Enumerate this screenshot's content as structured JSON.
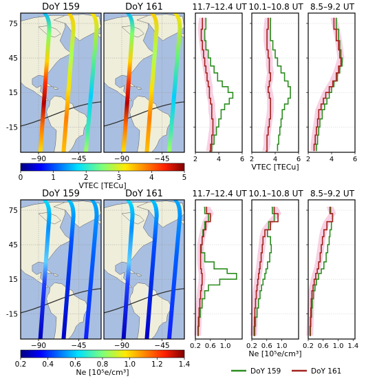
{
  "figure": {
    "map_titles": [
      "DoY 159",
      "DoY 161"
    ],
    "profile_titles": [
      "11.7–12.4 UT",
      "10.1–10.8 UT",
      "8.5–9.2 UT"
    ]
  },
  "chart_data": [
    {
      "type": "map",
      "panel": "top-left",
      "title": "DoY 159",
      "lat_ticks": [
        75,
        45,
        15,
        -15
      ],
      "lon_ticks": [
        -90,
        -45
      ],
      "xlim": [
        -110,
        -20
      ],
      "ylim": [
        -37,
        84
      ],
      "tracks": [
        {
          "lon_start": -88,
          "lon_end": -78
        },
        {
          "lon_start": -62,
          "lon_end": -51
        },
        {
          "lon_start": -37,
          "lon_end": -25
        }
      ]
    },
    {
      "type": "map",
      "panel": "top-right",
      "title": "DoY 161",
      "lat_ticks": [
        75,
        45,
        15,
        -15
      ],
      "lon_ticks": [
        -90,
        -45
      ],
      "xlim": [
        -110,
        -20
      ],
      "ylim": [
        -37,
        84
      ],
      "tracks": [
        {
          "lon_start": -88,
          "lon_end": -78
        },
        {
          "lon_start": -62,
          "lon_end": -51
        },
        {
          "lon_start": -37,
          "lon_end": -25
        }
      ]
    },
    {
      "type": "colorbar",
      "label": "VTEC [TECu]",
      "ticks": [
        "0",
        "1",
        "2",
        "3",
        "4",
        "5"
      ],
      "range": [
        0,
        5
      ],
      "colormap": "jet"
    },
    {
      "type": "line",
      "panel": "top-profile-1",
      "title": "11.7–12.4 UT",
      "xlim": [
        2,
        6
      ],
      "ylim": [
        -37,
        84
      ],
      "xticks": [
        "2",
        "4",
        "6"
      ],
      "series": [
        {
          "name": "DoY 159",
          "color": "#2a8c1e",
          "x": [
            2.9,
            2.8,
            2.9,
            3.1,
            3.3,
            3.6,
            3.9,
            4.3,
            4.8,
            5.2,
            4.9,
            4.5,
            4.2,
            4.0,
            3.8,
            3.6,
            3.4,
            3.2
          ],
          "y": [
            80,
            70,
            60,
            52,
            45,
            38,
            32,
            25,
            20,
            15,
            10,
            5,
            0,
            -8,
            -15,
            -22,
            -30,
            -36
          ]
        },
        {
          "name": "DoY 161",
          "color": "#a3201b",
          "x": [
            2.6,
            2.5,
            2.6,
            2.7,
            2.8,
            2.9,
            3.0,
            3.1,
            3.2,
            3.2,
            3.3,
            3.4,
            3.4,
            3.5,
            3.5,
            3.4,
            3.3,
            3.2
          ],
          "y": [
            80,
            70,
            60,
            52,
            45,
            38,
            32,
            25,
            20,
            15,
            10,
            5,
            0,
            -8,
            -15,
            -22,
            -30,
            -36
          ]
        }
      ]
    },
    {
      "type": "line",
      "panel": "top-profile-2",
      "title": "10.1–10.8 UT",
      "xlim": [
        2,
        6
      ],
      "ylim": [
        -37,
        84
      ],
      "xticks": [
        "2",
        "4",
        "6"
      ],
      "xlabel": "VTEC [TECu]",
      "series": [
        {
          "name": "DoY 159",
          "color": "#2a8c1e",
          "x": [
            3.6,
            3.6,
            3.8,
            4.0,
            4.2,
            4.5,
            4.8,
            5.1,
            5.3,
            5.3,
            5.1,
            4.8,
            4.6,
            4.5,
            4.4,
            4.3,
            4.2,
            4.2
          ],
          "y": [
            80,
            70,
            60,
            52,
            45,
            38,
            32,
            25,
            20,
            15,
            10,
            5,
            0,
            -8,
            -15,
            -22,
            -30,
            -36
          ]
        },
        {
          "name": "DoY 161",
          "color": "#a3201b",
          "x": [
            3.4,
            3.3,
            3.3,
            3.4,
            3.5,
            3.5,
            3.6,
            3.5,
            3.4,
            3.5,
            3.6,
            3.6,
            3.6,
            3.5,
            3.4,
            3.3,
            3.3,
            3.2
          ],
          "y": [
            80,
            70,
            60,
            52,
            45,
            38,
            32,
            25,
            20,
            15,
            10,
            5,
            0,
            -8,
            -15,
            -22,
            -30,
            -36
          ]
        }
      ]
    },
    {
      "type": "line",
      "panel": "top-profile-3",
      "title": "8.5–9.2 UT",
      "xlim": [
        2,
        6
      ],
      "ylim": [
        -37,
        84
      ],
      "xticks": [
        "2",
        "4",
        "6"
      ],
      "series": [
        {
          "name": "DoY 159",
          "color": "#2a8c1e",
          "x": [
            4.4,
            4.6,
            4.7,
            4.8,
            4.9,
            4.7,
            4.5,
            4.2,
            4.0,
            3.8,
            3.6,
            3.4,
            3.2,
            3.0,
            2.9,
            2.8,
            2.7,
            2.7
          ],
          "y": [
            80,
            70,
            60,
            52,
            45,
            38,
            32,
            25,
            20,
            15,
            10,
            5,
            0,
            -8,
            -15,
            -22,
            -30,
            -36
          ]
        },
        {
          "name": "DoY 161",
          "color": "#a3201b",
          "x": [
            4.2,
            4.4,
            4.6,
            4.7,
            4.8,
            4.6,
            4.4,
            4.1,
            3.8,
            3.5,
            3.3,
            3.1,
            2.9,
            2.8,
            2.7,
            2.6,
            2.5,
            2.5
          ],
          "y": [
            80,
            70,
            60,
            52,
            45,
            38,
            32,
            25,
            20,
            15,
            10,
            5,
            0,
            -8,
            -15,
            -22,
            -30,
            -36
          ]
        }
      ]
    },
    {
      "type": "map",
      "panel": "bottom-left",
      "title": "DoY 159",
      "lat_ticks": [
        75,
        45,
        15,
        -15
      ],
      "lon_ticks": [
        -90,
        -45
      ],
      "xlim": [
        -110,
        -20
      ],
      "ylim": [
        -37,
        84
      ],
      "tracks": [
        {
          "lon_start": -88,
          "lon_end": -78
        },
        {
          "lon_start": -62,
          "lon_end": -51
        },
        {
          "lon_start": -37,
          "lon_end": -25
        }
      ]
    },
    {
      "type": "map",
      "panel": "bottom-right",
      "title": "DoY 161",
      "lat_ticks": [
        75,
        45,
        15,
        -15
      ],
      "lon_ticks": [
        -90,
        -45
      ],
      "xlim": [
        -110,
        -20
      ],
      "ylim": [
        -37,
        84
      ],
      "tracks": [
        {
          "lon_start": -88,
          "lon_end": -78
        },
        {
          "lon_start": -62,
          "lon_end": -51
        },
        {
          "lon_start": -37,
          "lon_end": -25
        }
      ]
    },
    {
      "type": "colorbar",
      "label": "Ne [10⁵e/cm³]",
      "ticks": [
        "0.2",
        "0.4",
        "0.6",
        "0.8",
        "1.0",
        "1.2",
        "1.4"
      ],
      "range": [
        0.2,
        1.4
      ],
      "colormap": "jet"
    },
    {
      "type": "line",
      "panel": "bottom-profile-1",
      "title": "11.7–12.4 UT",
      "xlim": [
        0.2,
        1.45
      ],
      "ylim": [
        -37,
        84
      ],
      "xticks": [
        "0.2",
        "0.6",
        "1.0"
      ],
      "series": [
        {
          "name": "DoY 159",
          "color": "#2a8c1e",
          "x": [
            0.45,
            0.55,
            0.45,
            0.4,
            0.38,
            0.36,
            0.45,
            0.7,
            1.05,
            1.3,
            0.85,
            0.55,
            0.45,
            0.38,
            0.33,
            0.3,
            0.28,
            0.26
          ],
          "y": [
            78,
            72,
            65,
            58,
            52,
            45,
            38,
            30,
            24,
            20,
            15,
            10,
            5,
            -2,
            -10,
            -18,
            -26,
            -34
          ]
        },
        {
          "name": "DoY 161",
          "color": "#a3201b",
          "x": [
            0.5,
            0.6,
            0.48,
            0.42,
            0.38,
            0.34,
            0.34,
            0.34,
            0.36,
            0.38,
            0.38,
            0.36,
            0.34,
            0.32,
            0.3,
            0.28,
            0.27,
            0.26
          ],
          "y": [
            78,
            72,
            65,
            58,
            52,
            45,
            38,
            30,
            24,
            20,
            15,
            10,
            5,
            -2,
            -10,
            -18,
            -26,
            -34
          ]
        }
      ]
    },
    {
      "type": "line",
      "panel": "bottom-profile-2",
      "title": "10.1–10.8 UT",
      "xlim": [
        0.2,
        1.45
      ],
      "ylim": [
        -37,
        84
      ],
      "xticks": [
        "0.2",
        "0.6",
        "1.0"
      ],
      "xlabel": "Ne [10⁵e/cm³]",
      "series": [
        {
          "name": "DoY 159",
          "color": "#2a8c1e",
          "x": [
            0.75,
            0.8,
            0.65,
            0.62,
            0.7,
            0.72,
            0.68,
            0.62,
            0.58,
            0.55,
            0.5,
            0.46,
            0.42,
            0.38,
            0.34,
            0.3,
            0.28,
            0.26
          ],
          "y": [
            78,
            72,
            65,
            58,
            52,
            45,
            38,
            30,
            24,
            20,
            15,
            10,
            5,
            -2,
            -10,
            -18,
            -26,
            -34
          ]
        },
        {
          "name": "DoY 161",
          "color": "#a3201b",
          "x": [
            0.8,
            0.9,
            0.7,
            0.55,
            0.5,
            0.48,
            0.45,
            0.42,
            0.4,
            0.38,
            0.36,
            0.34,
            0.32,
            0.3,
            0.28,
            0.27,
            0.26,
            0.25
          ],
          "y": [
            78,
            72,
            65,
            58,
            52,
            45,
            38,
            30,
            24,
            20,
            15,
            10,
            5,
            -2,
            -10,
            -18,
            -26,
            -34
          ]
        }
      ]
    },
    {
      "type": "line",
      "panel": "bottom-profile-3",
      "title": "8.5–9.2 UT",
      "xlim": [
        0.2,
        1.45
      ],
      "ylim": [
        -37,
        84
      ],
      "xticks": [
        "0.2",
        "0.6",
        "1.0",
        "1.4"
      ],
      "series": [
        {
          "name": "DoY 159",
          "color": "#2a8c1e",
          "x": [
            0.8,
            0.85,
            0.82,
            0.78,
            0.76,
            0.72,
            0.68,
            0.62,
            0.55,
            0.48,
            0.42,
            0.38,
            0.34,
            0.31,
            0.29,
            0.27,
            0.26,
            0.25
          ],
          "y": [
            78,
            72,
            65,
            58,
            52,
            45,
            38,
            30,
            24,
            20,
            15,
            10,
            5,
            -2,
            -10,
            -18,
            -26,
            -34
          ]
        },
        {
          "name": "DoY 161",
          "color": "#a3201b",
          "x": [
            0.78,
            0.85,
            0.7,
            0.62,
            0.58,
            0.55,
            0.52,
            0.48,
            0.44,
            0.4,
            0.36,
            0.33,
            0.3,
            0.28,
            0.27,
            0.26,
            0.25,
            0.24
          ],
          "y": [
            78,
            72,
            65,
            58,
            52,
            45,
            38,
            30,
            24,
            20,
            15,
            10,
            5,
            -2,
            -10,
            -18,
            -26,
            -34
          ]
        }
      ]
    }
  ],
  "legend": [
    {
      "label": "DoY 159",
      "color": "#2a8c1e"
    },
    {
      "label": "DoY 161",
      "color": "#a3201b"
    }
  ]
}
